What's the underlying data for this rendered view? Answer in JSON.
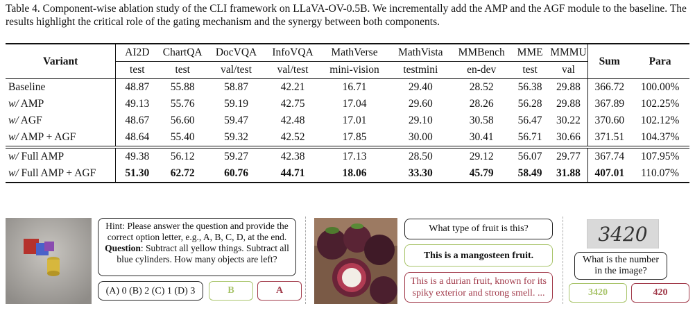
{
  "caption": "Table 4. Component-wise ablation study of the CLI framework on LLaVA-OV-0.5B. We incrementally add the AMP and the AGF module to the baseline. The results highlight the critical role of the gating mechanism and the synergy between both components.",
  "table": {
    "variant_header": "Variant",
    "benchmarks": [
      "AI2D",
      "ChartQA",
      "DocVQA",
      "InfoVQA",
      "MathVerse",
      "MathVista",
      "MMBench",
      "MME",
      "MMMU"
    ],
    "splits": [
      "test",
      "test",
      "val/test",
      "val/test",
      "mini-vision",
      "testmini",
      "en-dev",
      "test",
      "val"
    ],
    "sum_header": "Sum",
    "para_header": "Para",
    "rows": [
      {
        "prefix": "",
        "name": "Baseline",
        "values": [
          "48.87",
          "55.88",
          "58.87",
          "42.21",
          "16.71",
          "29.40",
          "28.52",
          "56.38",
          "29.88"
        ],
        "sum": "366.72",
        "para": "100.00%"
      },
      {
        "prefix": "w/",
        "name": " AMP",
        "values": [
          "49.13",
          "55.76",
          "59.19",
          "42.75",
          "17.04",
          "29.60",
          "28.26",
          "56.28",
          "29.88"
        ],
        "sum": "367.89",
        "para": "102.25%"
      },
      {
        "prefix": "w/",
        "name": " AGF",
        "values": [
          "48.67",
          "56.60",
          "59.47",
          "42.48",
          "17.01",
          "29.10",
          "30.58",
          "56.47",
          "30.22"
        ],
        "sum": "370.60",
        "para": "102.12%"
      },
      {
        "prefix": "w/",
        "name": " AMP + AGF",
        "values": [
          "48.64",
          "55.40",
          "59.32",
          "42.52",
          "17.85",
          "30.00",
          "30.41",
          "56.71",
          "30.66"
        ],
        "sum": "371.51",
        "para": "104.37%"
      },
      {
        "prefix": "w/",
        "name": " Full AMP",
        "values": [
          "49.38",
          "56.12",
          "59.27",
          "42.38",
          "17.13",
          "28.50",
          "29.12",
          "56.07",
          "29.77"
        ],
        "sum": "367.74",
        "para": "107.95%"
      },
      {
        "prefix": "w/",
        "name": " Full AMP + AGF",
        "values": [
          "51.30",
          "62.72",
          "60.76",
          "44.71",
          "18.06",
          "33.30",
          "45.79",
          "58.49",
          "31.88"
        ],
        "sum": "407.01",
        "para": "110.07%",
        "bold": true
      }
    ]
  },
  "examples": {
    "ex1": {
      "hint": "Hint: Please answer the question and provide the correct option letter, e.g., A, B, C, D, at the end.",
      "question_label": "Question",
      "question": ": Subtract all yellow things. Subtract all blue cylinders. How many objects are left?",
      "options": "(A) 0 (B) 2 (C) 1 (D) 3",
      "answer_good": "B",
      "answer_bad": "A",
      "colors": {
        "good": "#a8c46a",
        "bad": "#a13a4a"
      }
    },
    "ex2": {
      "question": "What type of fruit is this?",
      "answer_good": "This is a mangosteen fruit.",
      "answer_bad": "This is a durian fruit, known for its spiky exterior and strong smell. ..."
    },
    "ex3": {
      "image_text": "3420",
      "question": "What is the number in the image?",
      "answer_good": "3420",
      "answer_bad": "420"
    }
  }
}
